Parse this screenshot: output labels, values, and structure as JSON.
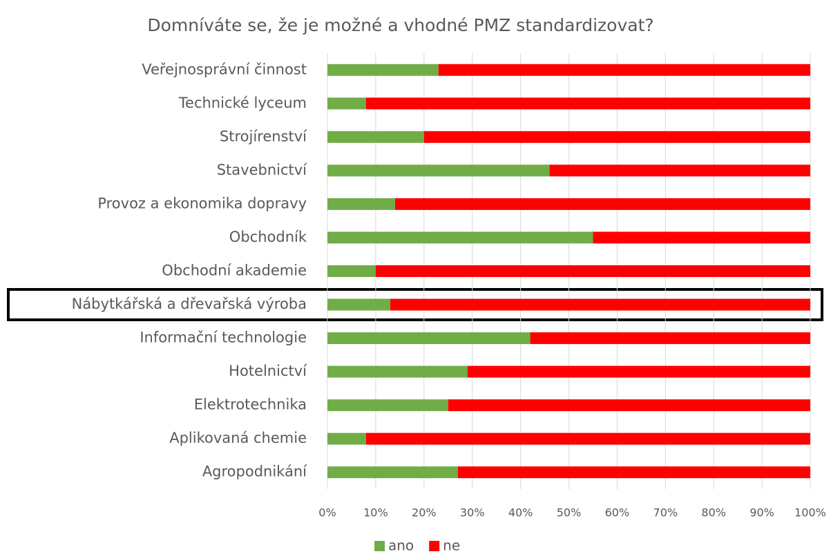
{
  "chart_data": {
    "type": "stacked_barh",
    "title": "Domníváte se, že je možné a vhodné PMZ standardizovat?",
    "categories": [
      "Veřejnosprávní činnost",
      "Technické lyceum",
      "Strojírenství",
      "Stavebnictví",
      "Provoz a ekonomika dopravy",
      "Obchodník",
      "Obchodní akademie",
      "Nábytkářská a dřevařská výroba",
      "Informační technologie",
      "Hotelnictví",
      "Elektrotechnika",
      "Aplikovaná chemie",
      "Agropodnikání"
    ],
    "series": [
      {
        "name": "ano",
        "color": "#70ad47",
        "values": [
          23,
          8,
          20,
          46,
          14,
          55,
          10,
          13,
          42,
          29,
          25,
          8,
          27
        ]
      },
      {
        "name": "ne",
        "color": "#ff0000",
        "values": [
          77,
          92,
          80,
          54,
          86,
          45,
          90,
          87,
          58,
          71,
          75,
          92,
          73
        ]
      }
    ],
    "xlim": [
      0,
      100
    ],
    "xticks": [
      {
        "value": 0,
        "label": "0%"
      },
      {
        "value": 10,
        "label": "10%"
      },
      {
        "value": 20,
        "label": "20%"
      },
      {
        "value": 30,
        "label": "30%"
      },
      {
        "value": 40,
        "label": "40%"
      },
      {
        "value": 50,
        "label": "50%"
      },
      {
        "value": 60,
        "label": "60%"
      },
      {
        "value": 70,
        "label": "70%"
      },
      {
        "value": 80,
        "label": "80%"
      },
      {
        "value": 90,
        "label": "90%"
      },
      {
        "value": 100,
        "label": "100%"
      }
    ],
    "grid": true,
    "legend": "bottom"
  }
}
